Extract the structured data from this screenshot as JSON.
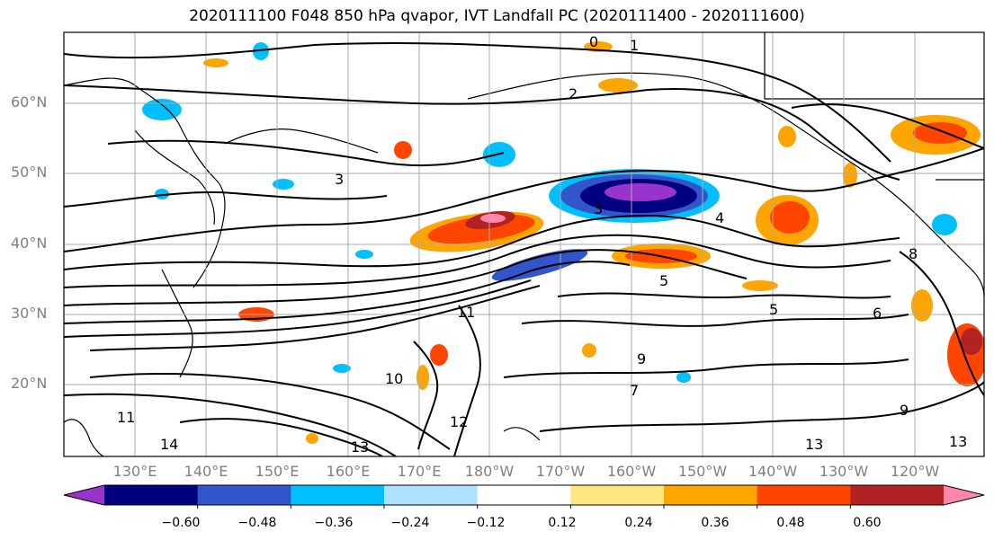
{
  "title": "2020111100 F048 850 hPa qvapor, IVT Landfall PC (2020111400 - 2020111600)",
  "lat_labels": [
    "60°N",
    "50°N",
    "40°N",
    "30°N",
    "20°N"
  ],
  "lon_labels": [
    "130°E",
    "140°E",
    "150°E",
    "160°E",
    "170°E",
    "180°W",
    "170°W",
    "160°W",
    "150°W",
    "140°W",
    "130°W",
    "120°W"
  ],
  "contour_labels": [
    "0",
    "1",
    "2",
    "3",
    "3",
    "4",
    "5",
    "5",
    "6",
    "7",
    "8",
    "9",
    "9",
    "10",
    "11",
    "11",
    "12",
    "13",
    "13",
    "13",
    "14"
  ],
  "colorbar": {
    "colors": [
      "#9933cc",
      "#000080",
      "#3355cc",
      "#00bfff",
      "#b0e0ff",
      "#ffffff",
      "#ffe680",
      "#ffa500",
      "#ff4500",
      "#b22222",
      "#ff88aa"
    ],
    "tick_labels": [
      "−0.60",
      "−0.48",
      "−0.36",
      "−0.24",
      "−0.12",
      "0.12",
      "0.24",
      "0.36",
      "0.48",
      "0.60"
    ]
  }
}
